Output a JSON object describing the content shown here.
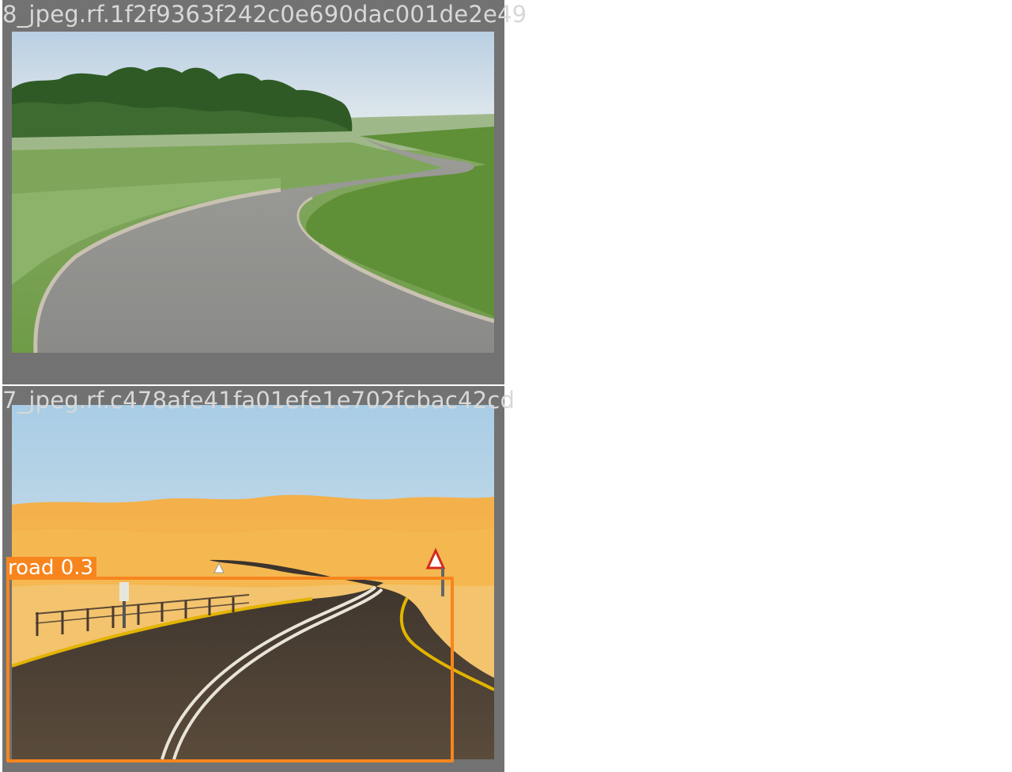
{
  "panels": [
    {
      "title": "8_jpeg.rf.1f2f9363f242c0e690dac001de2e49",
      "scene": "green fields with winding road",
      "detections": []
    },
    {
      "title": "7_jpeg.rf.c478afe41fa01efe1e702fcbac42cd",
      "scene": "desert dunes with winding road",
      "detections": [
        {
          "label": "road 0.3",
          "class": "road",
          "confidence": 0.3
        }
      ]
    }
  ],
  "colors": {
    "panel_background": "#727272",
    "title_text": "#d8d8d8",
    "detection_box": "#f7851e",
    "detection_label_text": "#ffffff"
  }
}
